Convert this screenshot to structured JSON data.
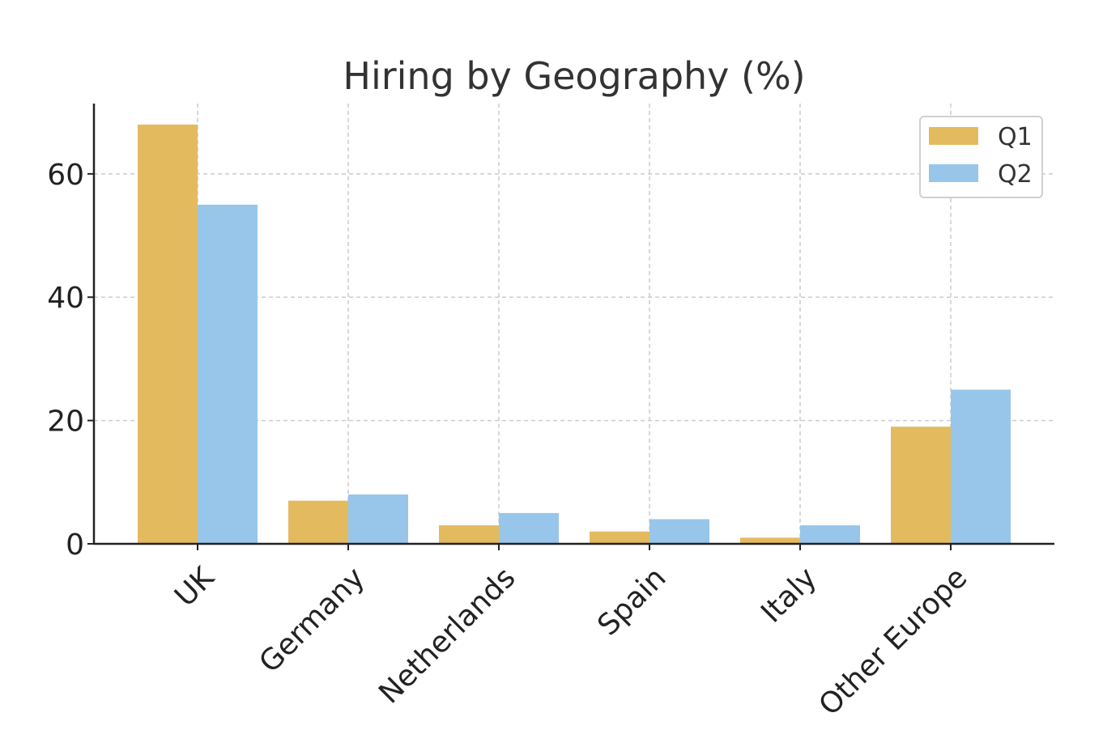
{
  "chart_data": {
    "type": "bar",
    "title": "Hiring by Geography (%)",
    "xlabel": "",
    "ylabel": "",
    "categories": [
      "UK",
      "Germany",
      "Netherlands",
      "Spain",
      "Italy",
      "Other Europe"
    ],
    "series": [
      {
        "name": "Q1",
        "values": [
          68,
          7,
          3,
          2,
          1,
          19
        ],
        "color": "#E3BB5E"
      },
      {
        "name": "Q2",
        "values": [
          55,
          8,
          5,
          4,
          3,
          25
        ],
        "color": "#97C6EA"
      }
    ],
    "ylim": [
      0,
      71.4
    ],
    "yticks": [
      0,
      20,
      40,
      60
    ],
    "grid": true,
    "legend_position": "top-right"
  }
}
